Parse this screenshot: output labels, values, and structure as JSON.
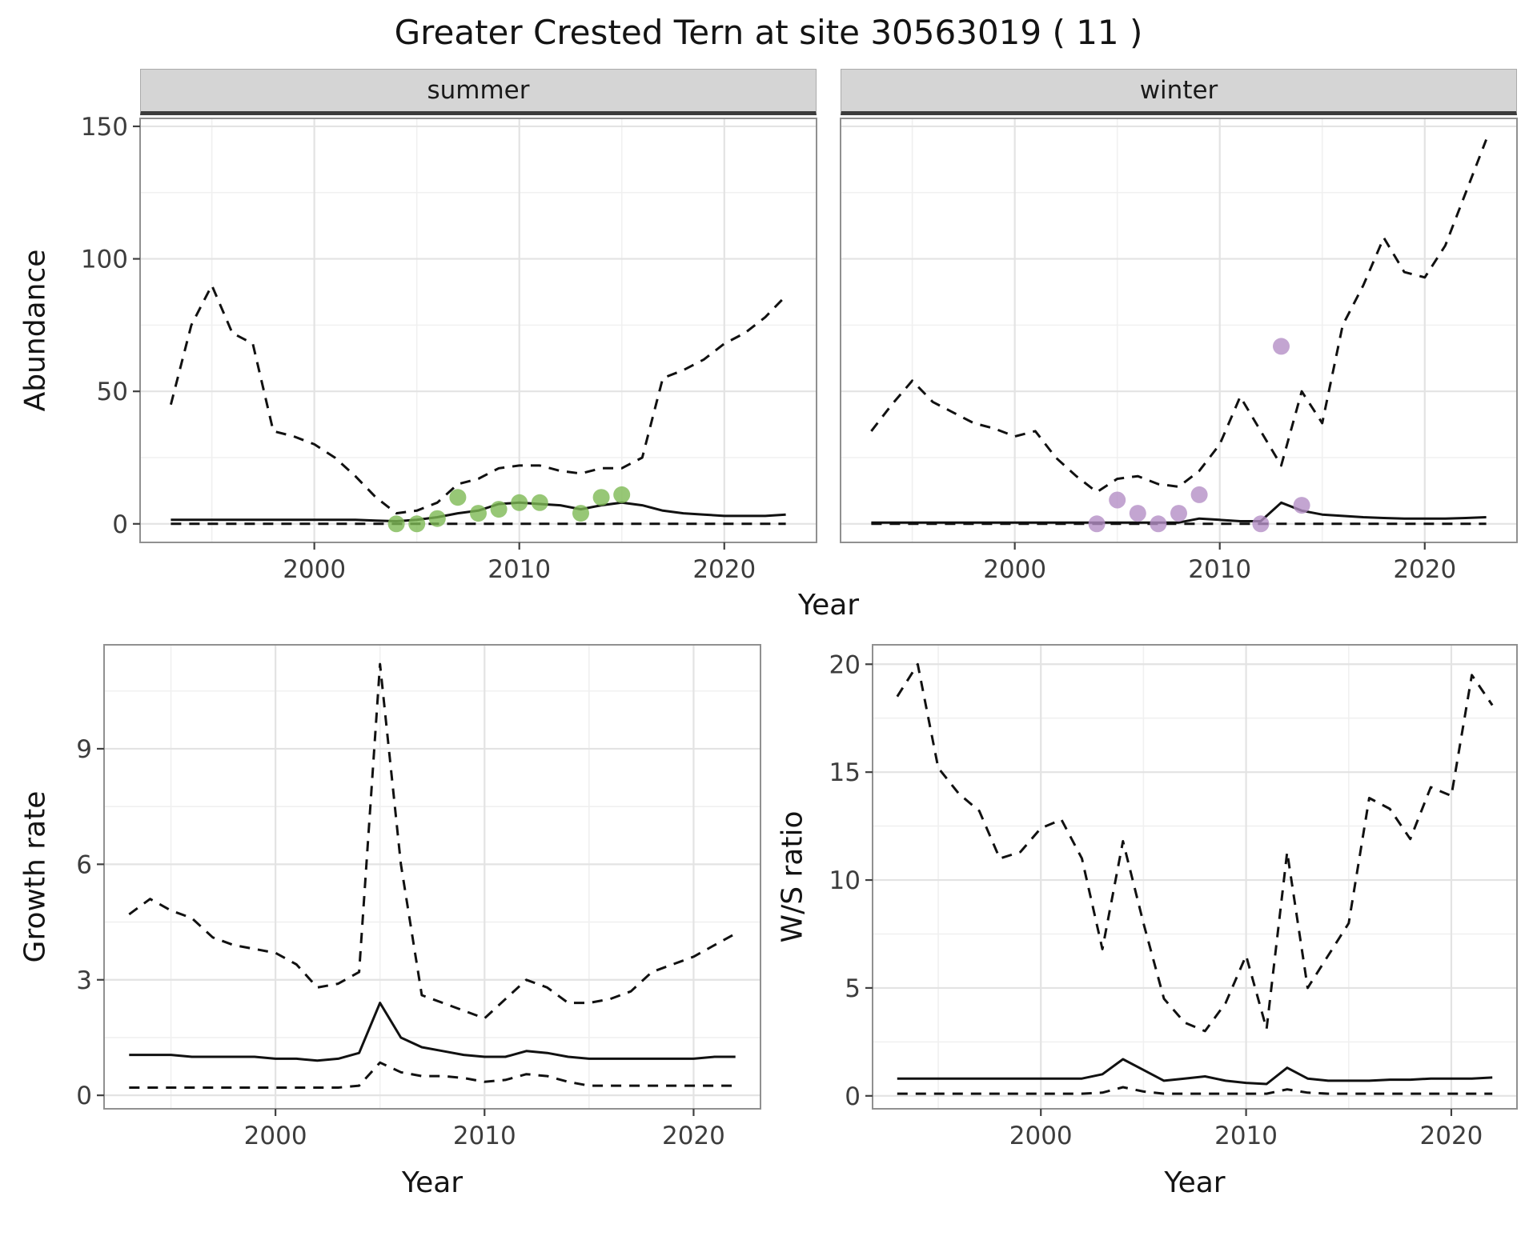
{
  "title": "Greater Crested Tern at site 30563019 ( 11 )",
  "facets": [
    {
      "label": "summer"
    },
    {
      "label": "winter"
    }
  ],
  "axes": {
    "abundance_y": "Abundance",
    "top_x": "Year",
    "growth_y": "Growth rate",
    "growth_x": "Year",
    "ws_y": "W/S ratio",
    "ws_x": "Year"
  },
  "colors": {
    "line": "#111111",
    "grid_major": "#e3e3e3",
    "grid_minor": "#f0f0f0",
    "panel_border": "#909090",
    "strip_bg": "#d5d5d5",
    "strip_underline": "#3c3c3c",
    "summer_points": "#7db954",
    "winter_points": "#b48ec6"
  },
  "chart_data": [
    {
      "id": "abundance-summer",
      "type": "line",
      "facet": "summer",
      "xlabel": "Year",
      "ylabel": "Abundance",
      "xlim": [
        1991.5,
        2024.5
      ],
      "ylim": [
        -7,
        153
      ],
      "xticks": [
        2000,
        2010,
        2020
      ],
      "yticks": [
        0,
        50,
        100,
        150
      ],
      "show_y_labels": true,
      "x": [
        1993,
        1994,
        1995,
        1996,
        1997,
        1998,
        1999,
        2000,
        2001,
        2002,
        2003,
        2004,
        2005,
        2006,
        2007,
        2008,
        2009,
        2010,
        2011,
        2012,
        2013,
        2014,
        2015,
        2016,
        2017,
        2018,
        2019,
        2020,
        2021,
        2022,
        2023
      ],
      "series": [
        {
          "name": "upper-ci",
          "style": "dashed",
          "values": [
            45,
            75,
            90,
            72,
            68,
            35,
            33,
            30,
            25,
            18,
            10,
            4,
            5,
            8,
            15,
            17,
            21,
            22,
            22,
            20,
            19,
            21,
            21,
            25,
            55,
            58,
            62,
            68,
            72,
            78,
            86
          ]
        },
        {
          "name": "median",
          "style": "solid",
          "values": [
            1.5,
            1.5,
            1.5,
            1.5,
            1.5,
            1.5,
            1.5,
            1.5,
            1.5,
            1.5,
            1.2,
            1,
            1.5,
            2.5,
            4,
            5,
            7.5,
            8,
            7.5,
            7,
            5.5,
            7,
            8,
            7,
            5,
            4,
            3.5,
            3,
            3,
            3,
            3.5
          ]
        },
        {
          "name": "lower-ci",
          "style": "dashed",
          "values": [
            0,
            0,
            0,
            0,
            0,
            0,
            0,
            0,
            0,
            0,
            0,
            0,
            0,
            0,
            0,
            0,
            0,
            0,
            0,
            0,
            0,
            0,
            0,
            0,
            0,
            0,
            0,
            0,
            0,
            0,
            0
          ]
        }
      ],
      "points": {
        "name": "observed-counts-summer",
        "color": "#7db954",
        "x": [
          2004,
          2005,
          2006,
          2007,
          2008,
          2009,
          2010,
          2011,
          2013,
          2014,
          2015
        ],
        "y": [
          0,
          0,
          2,
          10,
          4,
          5.5,
          8,
          8,
          4,
          10,
          11
        ]
      }
    },
    {
      "id": "abundance-winter",
      "type": "line",
      "facet": "winter",
      "xlabel": "Year",
      "ylabel": "Abundance",
      "xlim": [
        1991.5,
        2024.5
      ],
      "ylim": [
        -7,
        153
      ],
      "xticks": [
        2000,
        2010,
        2020
      ],
      "yticks": [
        0,
        50,
        100,
        150
      ],
      "show_y_labels": false,
      "x": [
        1993,
        1994,
        1995,
        1996,
        1997,
        1998,
        1999,
        2000,
        2001,
        2002,
        2003,
        2004,
        2005,
        2006,
        2007,
        2008,
        2009,
        2010,
        2011,
        2012,
        2013,
        2014,
        2015,
        2016,
        2017,
        2018,
        2019,
        2020,
        2021,
        2022,
        2023
      ],
      "series": [
        {
          "name": "upper-ci",
          "style": "dashed",
          "values": [
            35,
            45,
            54,
            46,
            42,
            38,
            36,
            33,
            35,
            25,
            18,
            12,
            17,
            18,
            15,
            14,
            20,
            30,
            48,
            35,
            22,
            50,
            38,
            75,
            90,
            108,
            95,
            93,
            105,
            125,
            145
          ]
        },
        {
          "name": "median",
          "style": "solid",
          "values": [
            0.5,
            0.5,
            0.5,
            0.5,
            0.5,
            0.5,
            0.5,
            0.5,
            0.5,
            0.5,
            0.5,
            0.5,
            0.5,
            0.5,
            0.5,
            0.5,
            2,
            1.5,
            1,
            1,
            8,
            5,
            3.5,
            3,
            2.5,
            2.2,
            2,
            2,
            2,
            2.2,
            2.5
          ]
        },
        {
          "name": "lower-ci",
          "style": "dashed",
          "values": [
            0,
            0,
            0,
            0,
            0,
            0,
            0,
            0,
            0,
            0,
            0,
            0,
            0,
            0,
            0,
            0,
            0,
            0,
            0,
            0,
            0,
            0,
            0,
            0,
            0,
            0,
            0,
            0,
            0,
            0,
            0
          ]
        }
      ],
      "points": {
        "name": "observed-counts-winter",
        "color": "#b48ec6",
        "x": [
          2004,
          2005,
          2006,
          2007,
          2008,
          2009,
          2012,
          2013,
          2014
        ],
        "y": [
          0,
          9,
          4,
          0,
          4,
          11,
          0,
          67,
          7
        ]
      }
    },
    {
      "id": "growth-rate",
      "type": "line",
      "xlabel": "Year",
      "ylabel": "Growth rate",
      "xlim": [
        1991.8,
        2023.2
      ],
      "ylim": [
        -0.35,
        11.7
      ],
      "xticks": [
        2000,
        2010,
        2020
      ],
      "yticks": [
        0,
        3,
        6,
        9
      ],
      "show_y_labels": true,
      "x": [
        1993,
        1994,
        1995,
        1996,
        1997,
        1998,
        1999,
        2000,
        2001,
        2002,
        2003,
        2004,
        2005,
        2006,
        2007,
        2008,
        2009,
        2010,
        2011,
        2012,
        2013,
        2014,
        2015,
        2016,
        2017,
        2018,
        2019,
        2020,
        2021,
        2022
      ],
      "series": [
        {
          "name": "upper-ci",
          "style": "dashed",
          "values": [
            4.7,
            5.1,
            4.8,
            4.6,
            4.1,
            3.9,
            3.8,
            3.7,
            3.4,
            2.8,
            2.9,
            3.2,
            11.2,
            6,
            2.6,
            2.4,
            2.2,
            2,
            2.5,
            3,
            2.8,
            2.4,
            2.4,
            2.5,
            2.7,
            3.2,
            3.4,
            3.6,
            3.9,
            4.2
          ]
        },
        {
          "name": "median",
          "style": "solid",
          "values": [
            1.05,
            1.05,
            1.05,
            1,
            1,
            1,
            1,
            0.95,
            0.95,
            0.9,
            0.95,
            1.1,
            2.4,
            1.5,
            1.25,
            1.15,
            1.05,
            1,
            1,
            1.15,
            1.1,
            1,
            0.95,
            0.95,
            0.95,
            0.95,
            0.95,
            0.95,
            1,
            1
          ]
        },
        {
          "name": "lower-ci",
          "style": "dashed",
          "values": [
            0.2,
            0.2,
            0.2,
            0.2,
            0.2,
            0.2,
            0.2,
            0.2,
            0.2,
            0.2,
            0.2,
            0.25,
            0.85,
            0.6,
            0.5,
            0.5,
            0.45,
            0.35,
            0.4,
            0.55,
            0.5,
            0.35,
            0.25,
            0.25,
            0.25,
            0.25,
            0.25,
            0.25,
            0.25,
            0.25
          ]
        }
      ]
    },
    {
      "id": "ws-ratio",
      "type": "line",
      "xlabel": "Year",
      "ylabel": "W/S ratio",
      "xlim": [
        1991.8,
        2023.2
      ],
      "ylim": [
        -0.6,
        20.9
      ],
      "xticks": [
        2000,
        2010,
        2020
      ],
      "yticks": [
        0,
        5,
        10,
        15,
        20
      ],
      "show_y_labels": true,
      "x": [
        1993,
        1994,
        1995,
        1996,
        1997,
        1998,
        1999,
        2000,
        2001,
        2002,
        2003,
        2004,
        2005,
        2006,
        2007,
        2008,
        2009,
        2010,
        2011,
        2012,
        2013,
        2014,
        2015,
        2016,
        2017,
        2018,
        2019,
        2020,
        2021,
        2022
      ],
      "series": [
        {
          "name": "upper-ci",
          "style": "dashed",
          "values": [
            18.5,
            20,
            15.2,
            14,
            13.2,
            11,
            11.3,
            12.4,
            12.8,
            11,
            6.8,
            11.8,
            8,
            4.5,
            3.4,
            3,
            4.3,
            6.5,
            3.1,
            11.3,
            5,
            6.5,
            8,
            13.8,
            13.3,
            11.9,
            14.3,
            13.9,
            19.5,
            18.1
          ]
        },
        {
          "name": "median",
          "style": "solid",
          "values": [
            0.8,
            0.8,
            0.8,
            0.8,
            0.8,
            0.8,
            0.8,
            0.8,
            0.8,
            0.8,
            1,
            1.7,
            1.2,
            0.7,
            0.8,
            0.9,
            0.7,
            0.6,
            0.55,
            1.3,
            0.8,
            0.7,
            0.7,
            0.7,
            0.75,
            0.75,
            0.8,
            0.8,
            0.8,
            0.85
          ]
        },
        {
          "name": "lower-ci",
          "style": "dashed",
          "values": [
            0.1,
            0.1,
            0.1,
            0.1,
            0.1,
            0.1,
            0.1,
            0.1,
            0.1,
            0.1,
            0.15,
            0.4,
            0.2,
            0.1,
            0.1,
            0.1,
            0.1,
            0.1,
            0.1,
            0.3,
            0.15,
            0.1,
            0.1,
            0.1,
            0.1,
            0.1,
            0.1,
            0.1,
            0.1,
            0.1
          ]
        }
      ]
    }
  ]
}
